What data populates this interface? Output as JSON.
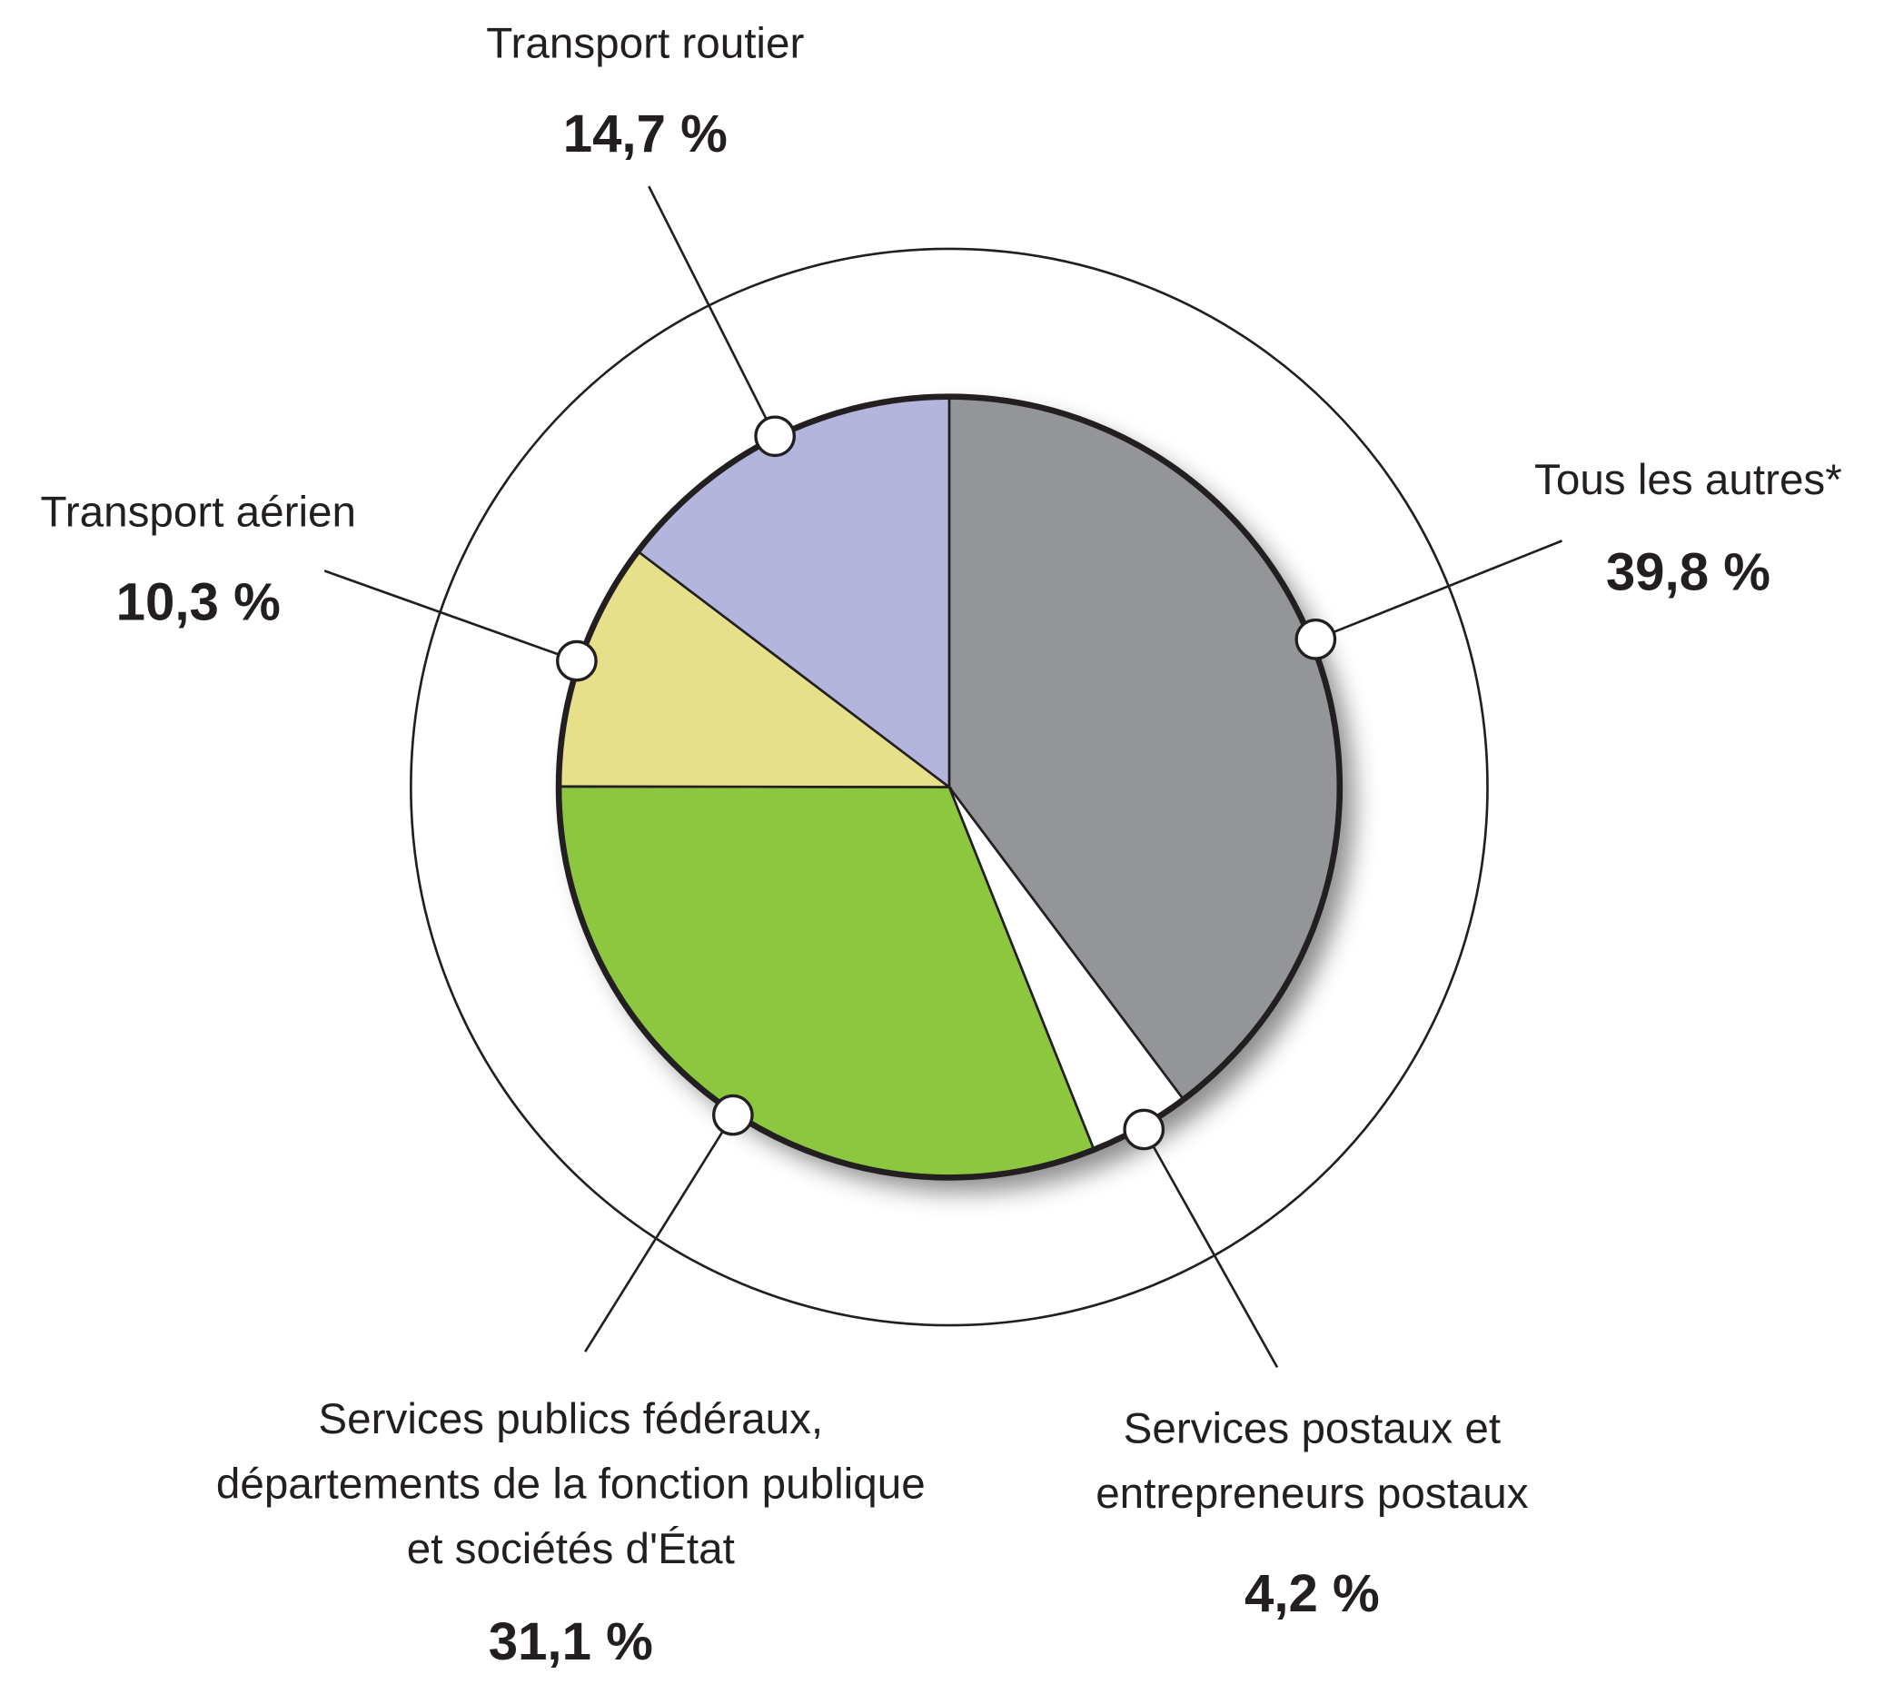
{
  "chart_data": {
    "type": "pie",
    "categories": [
      "Tous les autres*",
      "Services postaux et\nentrepreneurs postaux",
      "Services publics fédéraux,\ndépartements de la fonction publique\net sociétés d'État",
      "Transport aérien",
      "Transport routier"
    ],
    "values": [
      39.8,
      4.2,
      31.1,
      10.3,
      14.7
    ],
    "value_labels": [
      "39,8 %",
      "4,2 %",
      "31,1 %",
      "10,3 %",
      "14,7 %"
    ],
    "colors": [
      "#939598",
      "#ffffff",
      "#8dc63f",
      "#e6e08a",
      "#b3b5dc"
    ]
  }
}
